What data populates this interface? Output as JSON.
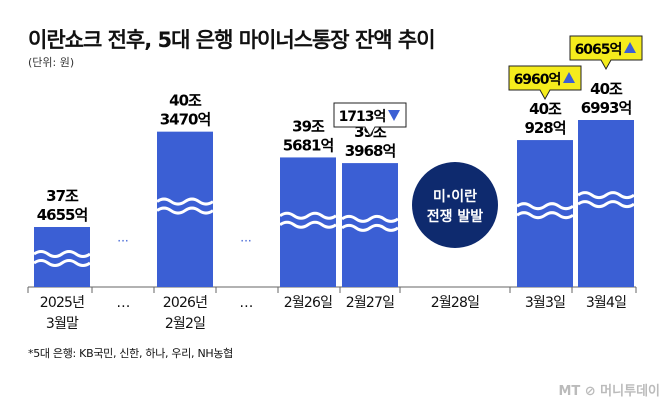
{
  "title": "이란쇼크 전후, 5대 은행 마이너스통장 잔액 추이",
  "unit": "(단위: 원)",
  "footnote": "*5대 은행: KB국민, 신한, 하나, 우리, NH농협",
  "logo": "MT 머니투데이",
  "chart_data": {
    "type": "bar",
    "axis_break": true,
    "bar_color": "#3b5fd4",
    "categories": [
      "2025년\n3월말",
      "…",
      "2026년\n2월2일",
      "…",
      "2월26일",
      "2월27일",
      "2월28일",
      "3월3일",
      "3월4일"
    ],
    "values_eok": [
      374655,
      null,
      403470,
      null,
      395681,
      393968,
      null,
      400928,
      406993
    ],
    "labels": [
      [
        "37조",
        "4655억"
      ],
      null,
      [
        "40조",
        "3470억"
      ],
      null,
      [
        "39조",
        "5681억"
      ],
      [
        "39조",
        "3968억"
      ],
      null,
      [
        "40조",
        "928억"
      ],
      [
        "40조",
        "6993억"
      ]
    ],
    "event": {
      "category": "2월28일",
      "text": [
        "미·이란",
        "전쟁 발발"
      ],
      "color": "#0e2a6e"
    },
    "callouts": [
      {
        "category": "2월27일",
        "text": "1713억",
        "direction": "down",
        "bg": "#ffffff"
      },
      {
        "category": "3월3일",
        "text": "6960억",
        "direction": "up",
        "bg": "#f5ec1c"
      },
      {
        "category": "3월4일",
        "text": "6065억",
        "direction": "up",
        "bg": "#f5ec1c"
      }
    ]
  }
}
